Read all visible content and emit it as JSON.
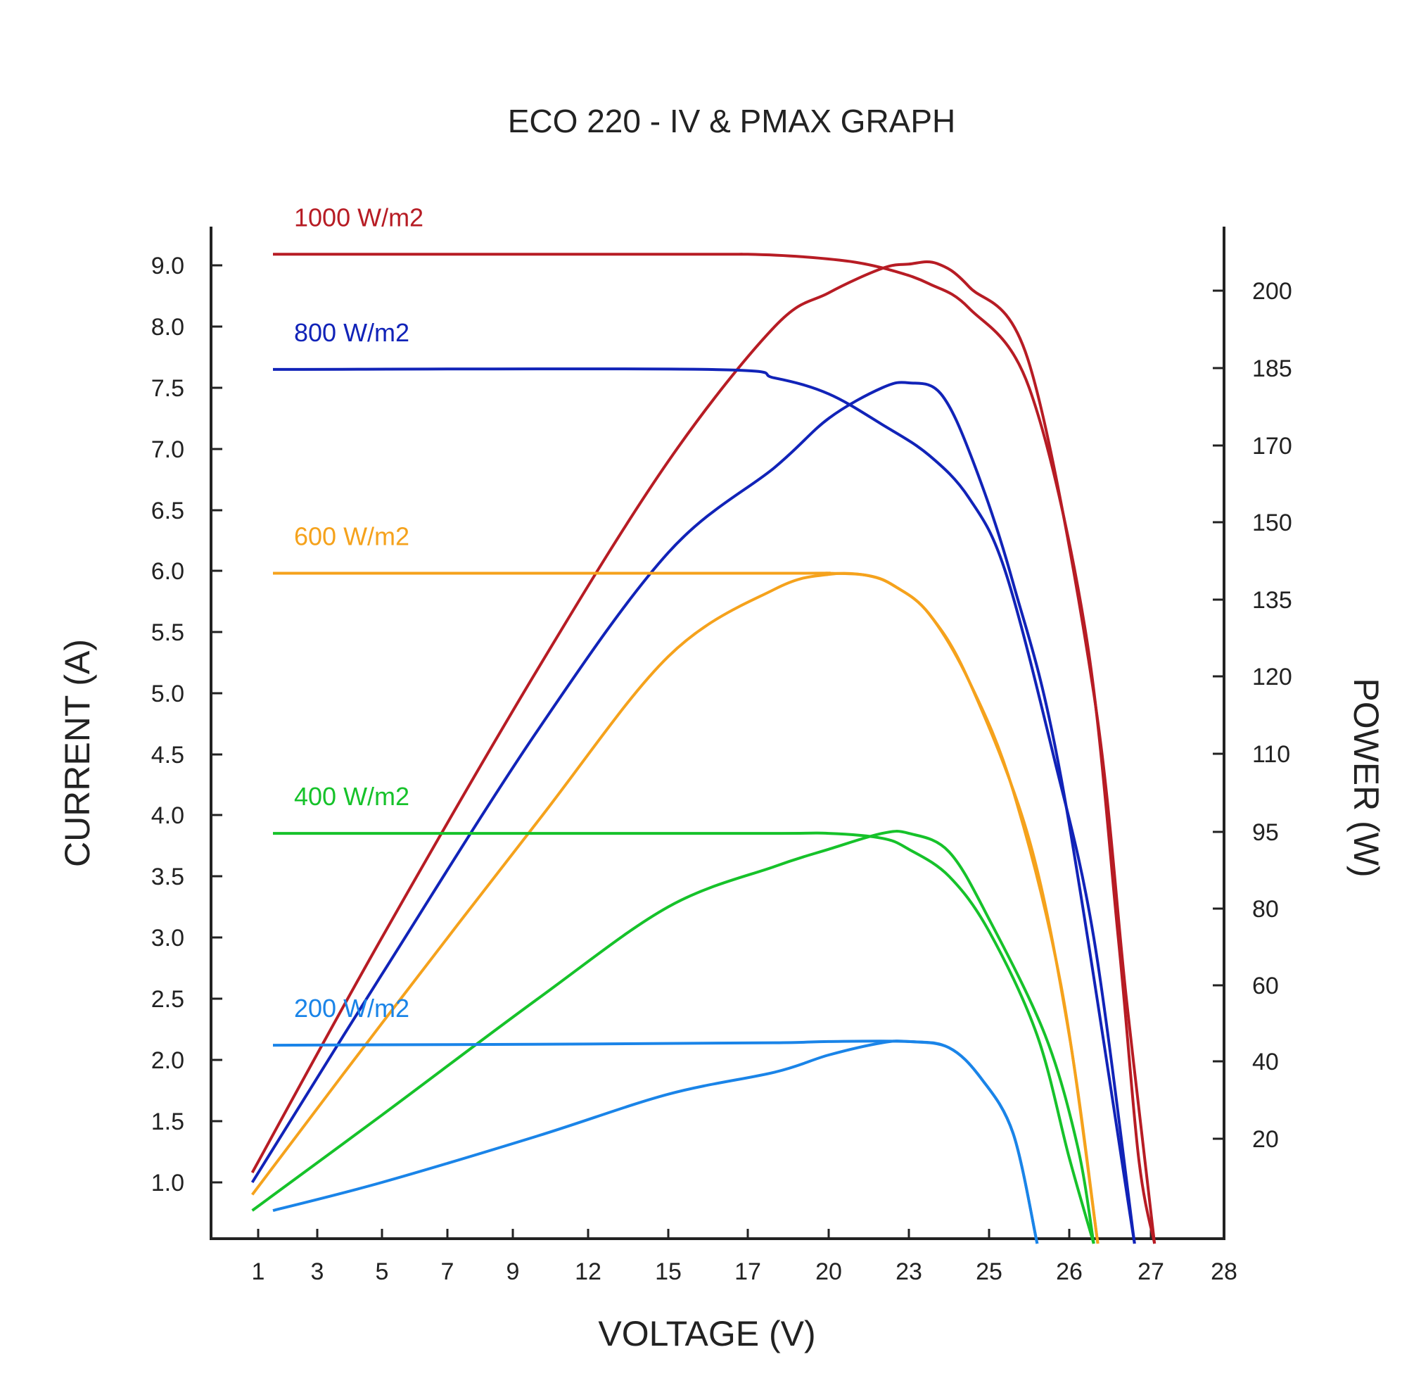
{
  "chart_data": {
    "type": "line",
    "title": "ECO 220 - IV & PMAX GRAPH",
    "xlabel": "VOLTAGE (V)",
    "ylabel_left": "CURRENT (A)",
    "ylabel_right": "POWER (W)",
    "x_ticks": [
      "1",
      "3",
      "5",
      "7",
      "9",
      "12",
      "15",
      "17",
      "20",
      "23",
      "25",
      "26",
      "27",
      "28"
    ],
    "y_left_ticks": [
      "1.0",
      "1.5",
      "2.0",
      "2.5",
      "3.0",
      "3.5",
      "4.0",
      "4.5",
      "5.0",
      "5.5",
      "6.0",
      "6.5",
      "7.0",
      "7.5",
      "8.0",
      "9.0"
    ],
    "y_right_ticks": [
      "20",
      "40",
      "60",
      "80",
      "95",
      "110",
      "120",
      "135",
      "150",
      "170",
      "185",
      "200"
    ],
    "grid": false,
    "series": [
      {
        "name": "1000 W/m2",
        "color": "#b71c24",
        "iv": [
          [
            1.5,
            9.18
          ],
          [
            15.5,
            9.18
          ],
          [
            17,
            9.18
          ],
          [
            19,
            9.14
          ],
          [
            21,
            9.05
          ],
          [
            22.5,
            8.9
          ],
          [
            23.5,
            8.7
          ],
          [
            24.5,
            8.3
          ],
          [
            25.5,
            7.5
          ],
          [
            26.2,
            5.5
          ],
          [
            26.6,
            3.0
          ],
          [
            26.85,
            1.2
          ],
          [
            27.05,
            0.5
          ]
        ],
        "pmax": [
          [
            0.8,
            1.08
          ],
          [
            5,
            3.0
          ],
          [
            10,
            5.2
          ],
          [
            15,
            6.9
          ],
          [
            18,
            8.0
          ],
          [
            20,
            8.55
          ],
          [
            22,
            8.95
          ],
          [
            23,
            9.02
          ],
          [
            23.7,
            9.03
          ],
          [
            24.5,
            8.65
          ],
          [
            25.5,
            7.7
          ],
          [
            26.3,
            5.0
          ],
          [
            26.7,
            2.5
          ],
          [
            27.05,
            0.5
          ]
        ]
      },
      {
        "name": "800 W/m2",
        "color": "#1123b8",
        "iv": [
          [
            1.5,
            7.65
          ],
          [
            16,
            7.65
          ],
          [
            18,
            7.58
          ],
          [
            20,
            7.45
          ],
          [
            22,
            7.2
          ],
          [
            23.5,
            6.95
          ],
          [
            24.5,
            6.6
          ],
          [
            25.2,
            6.0
          ],
          [
            25.8,
            4.5
          ],
          [
            26.3,
            3.0
          ],
          [
            26.8,
            0.5
          ]
        ],
        "pmax": [
          [
            0.8,
            1.0
          ],
          [
            5,
            2.7
          ],
          [
            10,
            4.7
          ],
          [
            15,
            6.15
          ],
          [
            18,
            6.85
          ],
          [
            20,
            7.25
          ],
          [
            22,
            7.5
          ],
          [
            23,
            7.54
          ],
          [
            23.8,
            7.45
          ],
          [
            24.6,
            6.9
          ],
          [
            25.3,
            5.9
          ],
          [
            25.9,
            4.3
          ],
          [
            26.8,
            0.5
          ]
        ]
      },
      {
        "name": "600 W/m2",
        "color": "#f5a21c",
        "iv": [
          [
            1.5,
            5.98
          ],
          [
            18,
            5.98
          ],
          [
            20,
            5.98
          ],
          [
            21.5,
            5.96
          ],
          [
            22.5,
            5.87
          ],
          [
            23.5,
            5.65
          ],
          [
            24.5,
            5.1
          ],
          [
            25.5,
            3.8
          ],
          [
            26,
            2.2
          ],
          [
            26.35,
            0.5
          ]
        ],
        "pmax": [
          [
            0.8,
            0.9
          ],
          [
            5,
            2.3
          ],
          [
            10,
            3.95
          ],
          [
            15,
            5.3
          ],
          [
            18,
            5.85
          ],
          [
            20,
            5.97
          ],
          [
            21.5,
            5.96
          ],
          [
            22.5,
            5.87
          ],
          [
            23.5,
            5.65
          ],
          [
            24.5,
            5.1
          ],
          [
            25.3,
            4.2
          ],
          [
            25.9,
            2.6
          ],
          [
            26.35,
            0.5
          ]
        ]
      },
      {
        "name": "400 W/m2",
        "color": "#16c22a",
        "iv": [
          [
            1.5,
            3.85
          ],
          [
            17,
            3.85
          ],
          [
            20,
            3.85
          ],
          [
            22,
            3.81
          ],
          [
            23,
            3.72
          ],
          [
            24,
            3.5
          ],
          [
            25,
            3.05
          ],
          [
            25.6,
            2.2
          ],
          [
            26,
            1.2
          ],
          [
            26.3,
            0.5
          ]
        ],
        "pmax": [
          [
            0.8,
            0.77
          ],
          [
            5,
            1.55
          ],
          [
            10,
            2.5
          ],
          [
            15,
            3.25
          ],
          [
            18,
            3.58
          ],
          [
            20,
            3.72
          ],
          [
            22,
            3.85
          ],
          [
            23,
            3.85
          ],
          [
            24,
            3.7
          ],
          [
            25,
            3.15
          ],
          [
            25.7,
            2.2
          ],
          [
            26.1,
            1.3
          ],
          [
            26.3,
            0.5
          ]
        ]
      },
      {
        "name": "200 W/m2",
        "color": "#1a84e8",
        "iv": [
          [
            1.5,
            2.12
          ],
          [
            12,
            2.13
          ],
          [
            18,
            2.14
          ],
          [
            20,
            2.15
          ],
          [
            23,
            2.15
          ],
          [
            24,
            2.1
          ],
          [
            24.8,
            1.85
          ],
          [
            25.3,
            1.4
          ],
          [
            25.6,
            0.5
          ]
        ],
        "pmax": [
          [
            1.5,
            0.77
          ],
          [
            5,
            1.0
          ],
          [
            10,
            1.38
          ],
          [
            15,
            1.72
          ],
          [
            18,
            1.9
          ],
          [
            20,
            2.04
          ],
          [
            22,
            2.14
          ],
          [
            23,
            2.15
          ],
          [
            24,
            2.1
          ],
          [
            24.8,
            1.85
          ],
          [
            25.3,
            1.4
          ],
          [
            25.6,
            0.5
          ]
        ]
      }
    ]
  }
}
